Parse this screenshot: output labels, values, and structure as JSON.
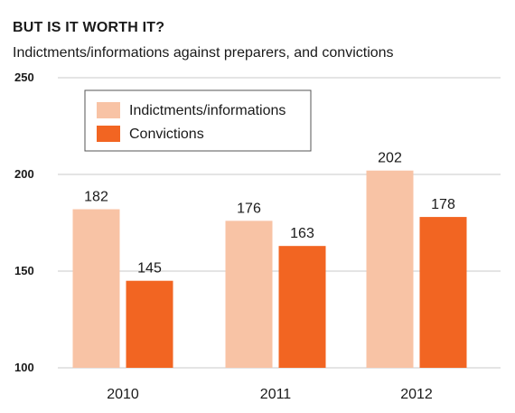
{
  "chart_data": {
    "type": "bar",
    "title": "BUT IS IT WORTH IT?",
    "subtitle": "Indictments/informations against preparers, and convictions",
    "categories": [
      "2010",
      "2011",
      "2012"
    ],
    "series": [
      {
        "name": "Indictments/informations",
        "values": [
          182,
          176,
          202
        ],
        "color": "#f8c3a5"
      },
      {
        "name": "Convictions",
        "values": [
          145,
          163,
          178
        ],
        "color": "#f26522"
      }
    ],
    "ylim": [
      100,
      250
    ],
    "yticks": [
      "100",
      "150",
      "200",
      "250"
    ],
    "grid": true,
    "legend_position": "top-left"
  }
}
